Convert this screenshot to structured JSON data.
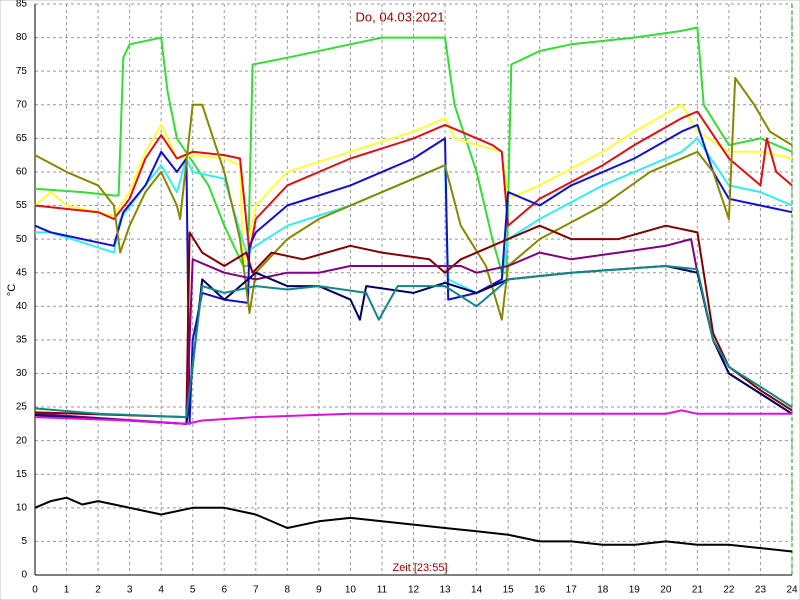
{
  "chart_data": {
    "type": "line",
    "title": "Do, 04.03.2021",
    "ylabel": "°C",
    "xlabel": "Zeit [23:55]",
    "xlim": [
      0,
      24
    ],
    "ylim": [
      0,
      85
    ],
    "grid": true,
    "xticks": [
      0,
      1,
      2,
      3,
      4,
      5,
      6,
      7,
      8,
      9,
      10,
      11,
      12,
      13,
      14,
      15,
      16,
      17,
      18,
      19,
      20,
      21,
      22,
      23,
      24
    ],
    "yticks": [
      0,
      5,
      10,
      15,
      20,
      25,
      30,
      35,
      40,
      45,
      50,
      55,
      60,
      65,
      70,
      75,
      80,
      85
    ],
    "series": [
      {
        "color": "#33dd33",
        "x": [
          0,
          1.5,
          2.5,
          2.65,
          2.8,
          3,
          4,
          4.2,
          4.5,
          5.5,
          6,
          6.6,
          6.75,
          6.9,
          8,
          10,
          11,
          13,
          13.3,
          14,
          14.5,
          14.8,
          14.95,
          15.1,
          16,
          17,
          19,
          20.5,
          21,
          21.2,
          22,
          23,
          24
        ],
        "values": [
          57.5,
          57,
          56.5,
          56.5,
          77,
          79,
          80,
          72,
          65,
          58,
          52,
          46,
          46,
          76,
          77,
          79,
          80,
          80,
          70,
          60,
          50,
          45,
          45,
          76,
          78,
          79,
          80,
          81,
          81.5,
          70,
          64,
          65,
          63
        ]
      },
      {
        "color": "#ffff33",
        "x": [
          0,
          0.5,
          1,
          2,
          2.5,
          3,
          3.5,
          4,
          4.5,
          5,
          6,
          6.5,
          6.6,
          7,
          8,
          10,
          12,
          13,
          13.3,
          14.8,
          15,
          16,
          18,
          19,
          20.5,
          21,
          22,
          23,
          24
        ],
        "values": [
          55,
          57,
          55,
          54,
          53.5,
          57,
          63,
          67,
          62,
          62.5,
          62,
          61,
          46,
          55,
          60,
          63,
          66,
          68,
          65,
          63,
          56,
          58,
          63,
          66,
          70,
          66,
          63,
          63,
          62
        ]
      },
      {
        "color": "#dd1111",
        "x": [
          0,
          1,
          2,
          2.5,
          3,
          3.5,
          4,
          4.5,
          5,
          6,
          6.5,
          6.8,
          7,
          8,
          10,
          12,
          13,
          13.5,
          14.5,
          14.8,
          15,
          16,
          18,
          19,
          20.5,
          21,
          22,
          23,
          23.2,
          23.5,
          24
        ],
        "values": [
          55,
          54.5,
          54,
          53,
          56,
          62,
          65.5,
          62,
          63,
          62.5,
          62,
          48,
          53,
          58,
          62,
          65,
          67,
          66,
          64,
          63,
          52,
          56,
          61,
          64,
          68,
          69,
          62,
          58,
          65,
          60,
          58
        ]
      },
      {
        "color": "#33eeee",
        "x": [
          0,
          0.5,
          2.5,
          2.7,
          3.5,
          4,
          4.5,
          4.8,
          5,
          6,
          6.7,
          7,
          8,
          10,
          12,
          13,
          13.1,
          14,
          14.8,
          15,
          16,
          18,
          20.5,
          21,
          22,
          23,
          24
        ],
        "values": [
          51,
          51,
          48,
          53,
          58,
          61,
          57,
          62,
          60,
          59,
          48,
          49,
          52,
          55,
          59,
          61,
          44,
          42,
          44,
          50,
          53,
          58,
          63,
          65,
          58,
          57,
          55
        ]
      },
      {
        "color": "#1111cc",
        "x": [
          0,
          0.5,
          2.5,
          2.8,
          3.5,
          4,
          4.5,
          4.8,
          4.9,
          5,
          5.3,
          6,
          6.75,
          6.8,
          7,
          8,
          10,
          12,
          13,
          13.1,
          14,
          14.8,
          15,
          16,
          17,
          19,
          20.5,
          21,
          21.5,
          22,
          23,
          24
        ],
        "values": [
          52,
          51,
          49,
          54,
          58,
          63,
          60,
          62,
          22.5,
          35,
          42,
          41,
          40.5,
          49,
          51,
          55,
          58,
          62,
          65,
          41,
          42,
          44,
          57,
          55,
          58,
          62,
          66,
          67,
          60,
          56,
          55,
          54
        ]
      },
      {
        "color": "#888800",
        "x": [
          0,
          1,
          2,
          2.5,
          2.7,
          3,
          3.5,
          4,
          4.5,
          4.6,
          5,
          5.3,
          6,
          6.5,
          6.8,
          7,
          8,
          9,
          10.5,
          12,
          13,
          13.5,
          14.3,
          14.8,
          15,
          16,
          18,
          19.5,
          21,
          21.5,
          22,
          22.2,
          22.8,
          23.3,
          24
        ],
        "values": [
          62.5,
          60,
          58,
          55,
          48,
          52,
          57,
          60,
          55,
          53,
          70,
          70,
          60,
          50,
          39,
          45,
          50,
          53,
          56,
          59,
          61,
          52,
          46,
          38,
          46,
          50,
          55,
          60,
          63,
          60,
          53,
          74,
          70,
          66,
          64
        ]
      },
      {
        "color": "#800000",
        "x": [
          0,
          4.8,
          4.9,
          5.3,
          6,
          6.7,
          6.9,
          7.5,
          8.5,
          10,
          11,
          12.5,
          13,
          13.5,
          14,
          15,
          16,
          17,
          18.5,
          20,
          21,
          21.5,
          22,
          23,
          24
        ],
        "values": [
          24.2,
          23.5,
          51,
          48,
          46,
          48,
          45,
          48,
          47,
          49,
          48,
          47,
          45,
          47,
          48,
          50,
          52,
          50,
          50,
          52,
          51,
          36,
          31,
          27.5,
          24.5
        ]
      },
      {
        "color": "#800080",
        "x": [
          0,
          4.8,
          5,
          6,
          7,
          8,
          9,
          10,
          11,
          12.5,
          13.5,
          14,
          15,
          16,
          17,
          18.5,
          20,
          20.8,
          21,
          21.5,
          22,
          23,
          24
        ],
        "values": [
          24,
          22.5,
          47,
          45,
          44,
          45,
          45,
          46,
          46,
          46,
          46,
          45,
          46,
          48,
          47,
          48,
          49,
          50,
          45,
          35,
          30,
          27,
          24
        ]
      },
      {
        "color": "#000060",
        "x": [
          0,
          4.8,
          5.3,
          6,
          7,
          8,
          9,
          10,
          10.3,
          10.5,
          12,
          13,
          14,
          15,
          17,
          20,
          21,
          21.5,
          22,
          23,
          24
        ],
        "values": [
          23.8,
          22.5,
          44,
          41,
          45,
          43,
          43,
          41,
          38,
          43,
          42,
          43.5,
          42,
          44,
          45,
          46,
          45,
          35,
          30,
          27,
          24
        ]
      },
      {
        "color": "#118888",
        "x": [
          0,
          2,
          4.8,
          5.3,
          6,
          7,
          8,
          9,
          10.5,
          10.9,
          11.5,
          13,
          14,
          15,
          17,
          20,
          21,
          21.5,
          22,
          23,
          24
        ],
        "values": [
          24.8,
          24,
          23.5,
          43,
          42,
          43,
          42.5,
          43,
          42,
          38,
          43,
          43,
          40,
          44,
          45,
          46,
          45.5,
          35,
          31,
          28,
          25
        ]
      },
      {
        "color": "#dd11dd",
        "x": [
          0,
          3,
          4.8,
          5.3,
          7,
          10,
          20,
          20.5,
          21,
          24
        ],
        "values": [
          23.5,
          23,
          22.5,
          23,
          23.5,
          24,
          24,
          24.5,
          24,
          24
        ]
      },
      {
        "color": "#000000",
        "x": [
          0,
          0.5,
          1,
          1.5,
          2,
          3,
          4,
          5,
          6,
          7,
          8,
          9,
          10,
          11,
          12,
          13,
          14,
          15,
          16,
          17,
          18,
          19,
          20,
          21,
          22,
          23,
          24
        ],
        "values": [
          10,
          11,
          11.5,
          10.5,
          11,
          10,
          9,
          10,
          10,
          9,
          7,
          8,
          8.5,
          8,
          7.5,
          7,
          6.5,
          6,
          5,
          5,
          4.5,
          4.5,
          5,
          4.5,
          4.5,
          4,
          3.5
        ]
      }
    ]
  }
}
